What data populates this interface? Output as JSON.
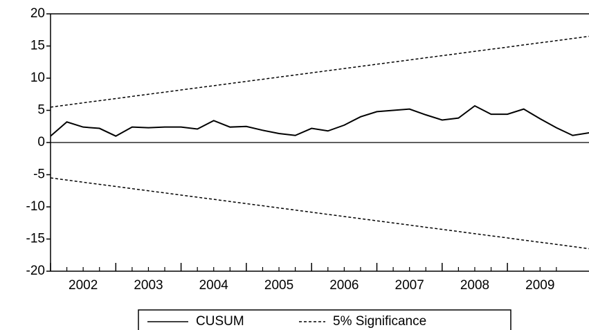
{
  "chart_data": {
    "type": "line",
    "x": [
      2002,
      2002.25,
      2002.5,
      2002.75,
      2003,
      2003.25,
      2003.5,
      2003.75,
      2004,
      2004.25,
      2004.5,
      2004.75,
      2005,
      2005.25,
      2005.5,
      2005.75,
      2006,
      2006.25,
      2006.5,
      2006.75,
      2007,
      2007.25,
      2007.5,
      2007.75,
      2008,
      2008.25,
      2008.5,
      2008.75,
      2009,
      2009.25,
      2009.5,
      2009.75,
      2010,
      2010.25
    ],
    "series": [
      {
        "name": "CUSUM",
        "color": "#000000",
        "dashed": false,
        "values": [
          1.0,
          3.2,
          2.4,
          2.2,
          1.0,
          2.4,
          2.3,
          2.4,
          2.4,
          2.1,
          3.4,
          2.4,
          2.5,
          1.9,
          1.4,
          1.1,
          2.2,
          1.8,
          2.7,
          4.0,
          4.8,
          5.0,
          5.2,
          4.3,
          3.5,
          3.8,
          5.7,
          4.4,
          4.4,
          5.2,
          3.7,
          2.3,
          1.1,
          1.5
        ]
      },
      {
        "name": "5% Significance",
        "color": "#000000",
        "dashed": true,
        "values": [
          5.5,
          5.83,
          6.17,
          6.5,
          6.83,
          7.17,
          7.5,
          7.83,
          8.17,
          8.5,
          8.83,
          9.17,
          9.5,
          9.83,
          10.17,
          10.5,
          10.83,
          11.17,
          11.5,
          11.83,
          12.17,
          12.5,
          12.83,
          13.17,
          13.5,
          13.83,
          14.17,
          14.5,
          14.83,
          15.17,
          15.5,
          15.83,
          16.17,
          16.5
        ],
        "lower_values": [
          -5.5,
          -5.83,
          -6.17,
          -6.5,
          -6.83,
          -7.17,
          -7.5,
          -7.83,
          -8.17,
          -8.5,
          -8.83,
          -9.17,
          -9.5,
          -9.83,
          -10.17,
          -10.5,
          -10.83,
          -11.17,
          -11.5,
          -11.83,
          -12.17,
          -12.5,
          -12.83,
          -13.17,
          -13.5,
          -13.83,
          -14.17,
          -14.5,
          -14.83,
          -15.17,
          -15.5,
          -15.83,
          -16.17,
          -16.5
        ]
      }
    ],
    "xlim": [
      2002,
      2010.25
    ],
    "xticks": [
      2002,
      2003,
      2004,
      2005,
      2006,
      2007,
      2008,
      2009
    ],
    "ylim": [
      -20,
      20
    ],
    "yticks": [
      -20,
      -15,
      -10,
      -5,
      0,
      5,
      10,
      15,
      20
    ]
  }
}
